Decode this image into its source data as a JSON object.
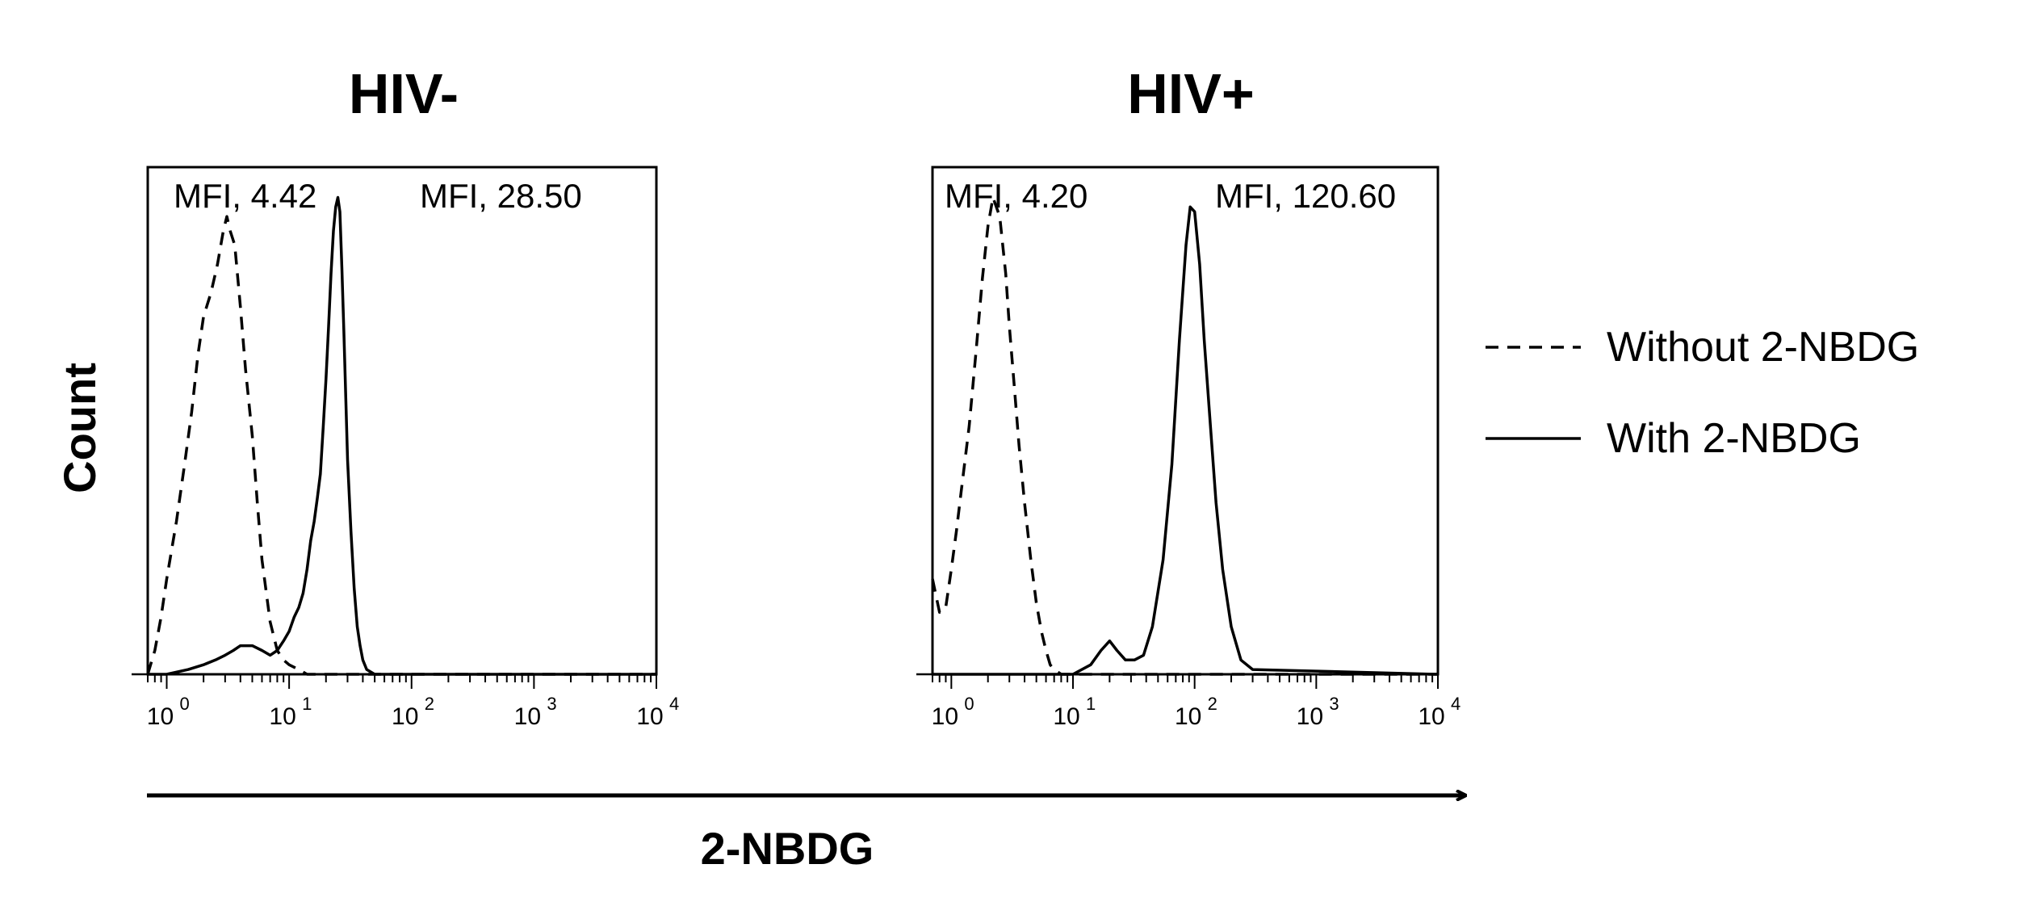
{
  "figure": {
    "y_axis_label": "Count",
    "x_axis_label": "2-NBDG"
  },
  "legend": {
    "items": [
      {
        "label": "Without 2-NBDG",
        "style": "dashed"
      },
      {
        "label": "With 2-NBDG",
        "style": "solid"
      }
    ]
  },
  "chart_data": [
    {
      "type": "line",
      "title": "HIV-",
      "x_scale": "log",
      "xlim": [
        0.7,
        10000
      ],
      "x_ticks": [
        {
          "base": "10",
          "exp": "0"
        },
        {
          "base": "10",
          "exp": "1"
        },
        {
          "base": "10",
          "exp": "2"
        },
        {
          "base": "10",
          "exp": "3"
        },
        {
          "base": "10",
          "exp": "4"
        }
      ],
      "annotations": [
        "MFI, 4.42",
        "MFI, 28.50"
      ],
      "ylim": [
        0,
        1.05
      ],
      "series": [
        {
          "name": "Without 2-NBDG",
          "style": "dashed",
          "x": [
            0.7,
            0.8,
            0.9,
            1.0,
            1.2,
            1.4,
            1.6,
            1.8,
            2.0,
            2.3,
            2.6,
            2.9,
            3.1,
            3.3,
            3.6,
            4.0,
            4.4,
            5.0,
            5.5,
            6.0,
            7.0,
            8.0,
            9.0,
            10.0,
            12.0,
            14.0,
            20.0,
            30.0,
            60.0,
            10000.0
          ],
          "y": [
            0.0,
            0.05,
            0.12,
            0.2,
            0.32,
            0.44,
            0.55,
            0.67,
            0.75,
            0.8,
            0.86,
            0.93,
            0.96,
            0.93,
            0.9,
            0.77,
            0.64,
            0.5,
            0.36,
            0.24,
            0.11,
            0.05,
            0.03,
            0.02,
            0.01,
            0.0,
            0.0,
            0.0,
            0.0,
            0.0
          ]
        },
        {
          "name": "With 2-NBDG",
          "style": "solid",
          "x": [
            0.7,
            1.0,
            1.5,
            2.0,
            2.5,
            3.0,
            3.5,
            4.0,
            4.5,
            5.0,
            6.0,
            7.0,
            8.0,
            9.0,
            10.0,
            11.0,
            12.0,
            13.0,
            14.0,
            15.0,
            16.0,
            17.0,
            18.0,
            19.0,
            20.0,
            21.0,
            22.0,
            23.0,
            24.0,
            25.0,
            26.0,
            27.0,
            28.0,
            30.0,
            32.0,
            34.0,
            36.0,
            38.0,
            40.0,
            43.0,
            50.0,
            60.0,
            80.0,
            10000.0
          ],
          "y": [
            0.0,
            0.0,
            0.01,
            0.02,
            0.03,
            0.04,
            0.05,
            0.06,
            0.06,
            0.06,
            0.05,
            0.04,
            0.05,
            0.07,
            0.09,
            0.12,
            0.14,
            0.17,
            0.22,
            0.28,
            0.32,
            0.37,
            0.42,
            0.52,
            0.62,
            0.73,
            0.84,
            0.93,
            0.98,
            1.0,
            0.97,
            0.85,
            0.72,
            0.45,
            0.3,
            0.18,
            0.1,
            0.06,
            0.03,
            0.01,
            0.0,
            0.0,
            0.0,
            0.0
          ]
        }
      ]
    },
    {
      "type": "line",
      "title": "HIV+",
      "x_scale": "log",
      "xlim": [
        0.7,
        10000
      ],
      "x_ticks": [
        {
          "base": "10",
          "exp": "0"
        },
        {
          "base": "10",
          "exp": "1"
        },
        {
          "base": "10",
          "exp": "2"
        },
        {
          "base": "10",
          "exp": "3"
        },
        {
          "base": "10",
          "exp": "4"
        }
      ],
      "annotations": [
        "MFI, 4.20",
        "MFI, 120.60"
      ],
      "ylim": [
        0,
        1.05
      ],
      "series": [
        {
          "name": "Without 2-NBDG",
          "style": "dashed",
          "x": [
            0.7,
            0.8,
            0.9,
            1.0,
            1.1,
            1.2,
            1.4,
            1.6,
            1.8,
            2.0,
            2.2,
            2.5,
            2.8,
            3.0,
            3.3,
            3.6,
            4.0,
            4.5,
            5.0,
            5.5,
            6.0,
            6.5,
            7.0,
            8.0,
            10.0,
            10000.0
          ],
          "y": [
            0.2,
            0.13,
            0.14,
            0.22,
            0.3,
            0.38,
            0.52,
            0.68,
            0.83,
            0.94,
            1.0,
            0.96,
            0.84,
            0.73,
            0.6,
            0.48,
            0.36,
            0.24,
            0.15,
            0.09,
            0.05,
            0.02,
            0.01,
            0.0,
            0.0,
            0.0
          ]
        },
        {
          "name": "With 2-NBDG",
          "style": "solid",
          "x": [
            0.7,
            5.0,
            10.0,
            14.0,
            17.0,
            20.0,
            23.0,
            27.0,
            32.0,
            38.0,
            45.0,
            55.0,
            65.0,
            75.0,
            85.0,
            92.0,
            100.0,
            110.0,
            120.0,
            135.0,
            150.0,
            170.0,
            200.0,
            240.0,
            300.0,
            10000.0
          ],
          "y": [
            0.0,
            0.0,
            0.0,
            0.02,
            0.05,
            0.07,
            0.05,
            0.03,
            0.03,
            0.04,
            0.1,
            0.24,
            0.44,
            0.7,
            0.9,
            0.98,
            0.97,
            0.86,
            0.7,
            0.52,
            0.36,
            0.22,
            0.1,
            0.03,
            0.01,
            0.0
          ]
        }
      ]
    }
  ]
}
